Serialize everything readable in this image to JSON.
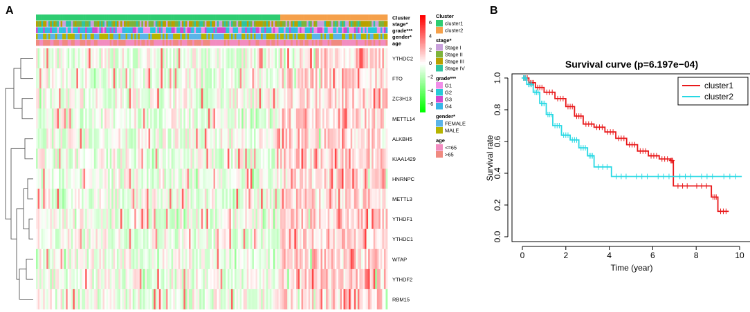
{
  "panel_a": {
    "label": "A",
    "track_labels": [
      "Cluster",
      "stage*",
      "grade***",
      "gender*",
      "age"
    ],
    "genes": [
      "YTHDC2",
      "FTO",
      "ZC3H13",
      "METTL14",
      "ALKBH5",
      "KIAA1429",
      "HNRNPC",
      "METTL3",
      "YTHDF1",
      "YTHDC1",
      "WTAP",
      "YTHDF2",
      "RBM15"
    ],
    "colorbar_ticks": [
      "6",
      "4",
      "2",
      "0",
      "−2",
      "−4",
      "−6"
    ],
    "legend": {
      "cluster": {
        "title": "Cluster",
        "items": [
          {
            "label": "cluster1",
            "color": "#2ecc71"
          },
          {
            "label": "cluster2",
            "color": "#f5a04a"
          }
        ]
      },
      "stage": {
        "title": "stage*",
        "items": [
          {
            "label": "Stage I",
            "color": "#c9a0dc"
          },
          {
            "label": "Stage II",
            "color": "#7db33b"
          },
          {
            "label": "Stage III",
            "color": "#b8a000"
          },
          {
            "label": "Stage IV",
            "color": "#2ec4a0"
          }
        ]
      },
      "grade": {
        "title": "grade***",
        "items": [
          {
            "label": "G1",
            "color": "#f08de8"
          },
          {
            "label": "G2",
            "color": "#27c9d8"
          },
          {
            "label": "G3",
            "color": "#d04ad0"
          },
          {
            "label": "G4",
            "color": "#37b5e8"
          }
        ]
      },
      "gender": {
        "title": "gender*",
        "items": [
          {
            "label": "FEMALE",
            "color": "#5ab4e8"
          },
          {
            "label": "MALE",
            "color": "#b6b400"
          }
        ]
      },
      "age": {
        "title": "age",
        "items": [
          {
            "label": "<=65",
            "color": "#f28cc0"
          },
          {
            "label": ">65",
            "color": "#f08a80"
          }
        ]
      }
    }
  },
  "panel_b": {
    "label": "B"
  },
  "chart_data": {
    "type": "line",
    "title": "Survival curve (p=6.197e−04)",
    "xlabel": "Time (year)",
    "ylabel": "Survival rate",
    "xlim": [
      0,
      10
    ],
    "ylim": [
      0,
      1
    ],
    "xticks": [
      "0",
      "2",
      "4",
      "6",
      "8",
      "10"
    ],
    "yticks": [
      "0.0",
      "0.2",
      "0.4",
      "0.6",
      "0.8",
      "1.0"
    ],
    "legend": "top-right",
    "series": [
      {
        "name": "cluster1",
        "color": "#e8191b",
        "x": [
          0,
          0.3,
          0.6,
          1.0,
          1.5,
          2.0,
          2.4,
          2.8,
          3.3,
          3.8,
          4.3,
          4.8,
          5.3,
          5.8,
          6.3,
          6.8,
          6.95,
          7.8,
          8.7,
          9.0,
          9.5
        ],
        "y": [
          1.0,
          0.97,
          0.94,
          0.91,
          0.87,
          0.82,
          0.76,
          0.71,
          0.69,
          0.66,
          0.62,
          0.58,
          0.54,
          0.51,
          0.49,
          0.48,
          0.32,
          0.32,
          0.25,
          0.16,
          0.16
        ]
      },
      {
        "name": "cluster2",
        "color": "#27d8e3",
        "x": [
          0,
          0.2,
          0.5,
          0.8,
          1.1,
          1.4,
          1.8,
          2.2,
          2.6,
          3.0,
          3.3,
          4.1,
          5.0,
          6.0,
          7.0,
          8.0,
          9.0,
          10.1
        ],
        "y": [
          1.0,
          0.96,
          0.91,
          0.84,
          0.77,
          0.7,
          0.64,
          0.61,
          0.56,
          0.51,
          0.44,
          0.38,
          0.38,
          0.38,
          0.38,
          0.38,
          0.38,
          0.38
        ]
      }
    ]
  }
}
